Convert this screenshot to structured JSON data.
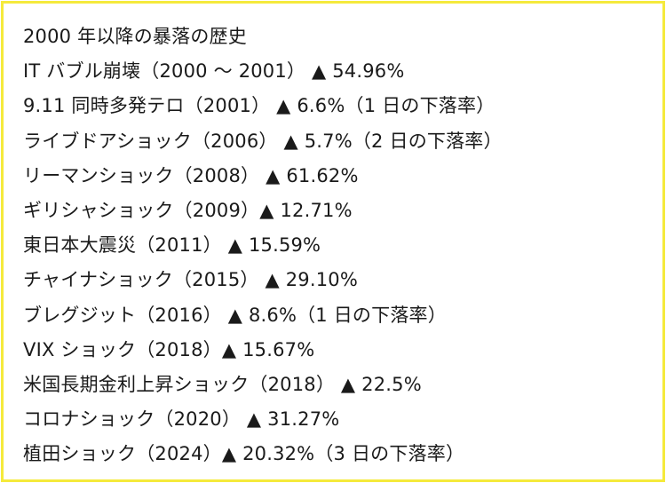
{
  "heading": "2000 年以降の暴落の歴史",
  "items": [
    "IT バブル崩壊（2000 ～ 2001） ▲ 54.96%",
    "9.11 同時多発テロ（2001） ▲ 6.6%（1 日の下落率）",
    "ライブドアショック（2006） ▲ 5.7%（2 日の下落率）",
    "リーマンショック（2008） ▲ 61.62%",
    "ギリシャショック（2009）▲ 12.71%",
    "東日本大震災（2011） ▲ 15.59%",
    "チャイナショック（2015） ▲ 29.10%",
    "ブレグジット（2016） ▲ 8.6%（1 日の下落率）",
    "VIX ショック（2018）▲ 15.67%",
    "米国長期金利上昇ショック（2018） ▲ 22.5%",
    "コロナショック（2020） ▲ 31.27%",
    "植田ショック（2024）▲ 20.32%（3 日の下落率）"
  ],
  "colors": {
    "border": "#f5ea3c",
    "text": "#1a1a1a",
    "background": "#ffffff"
  }
}
